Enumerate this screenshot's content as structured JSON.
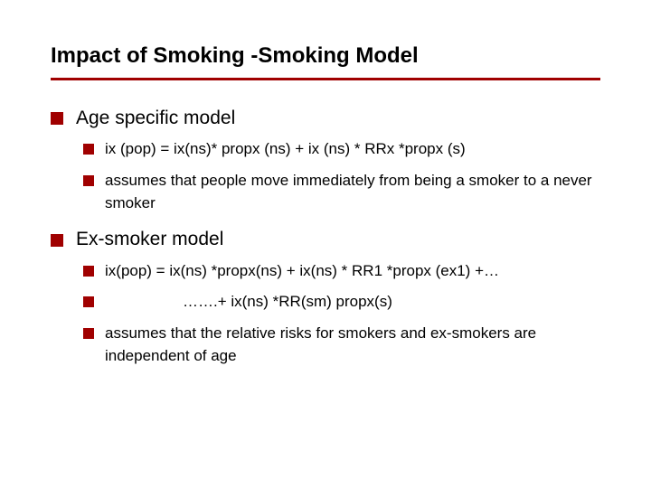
{
  "colors": {
    "bullet": "#a00000",
    "rule": "#a00000",
    "text": "#000000",
    "background": "#ffffff"
  },
  "typography": {
    "title_fontsize": 24,
    "level1_fontsize": 21,
    "level2_fontsize": 17,
    "font_family": "Arial"
  },
  "title": "Impact of Smoking -Smoking Model",
  "bullets": [
    {
      "label": "Age specific model",
      "items": [
        "ix (pop) = ix(ns)* propx (ns) +  ix (ns) * RRx *propx (s)",
        "assumes that people move immediately from being a smoker to a never smoker"
      ]
    },
    {
      "label": "Ex-smoker model",
      "items": [
        "ix(pop) = ix(ns) *propx(ns) + ix(ns) * RR1 *propx (ex1) +…",
        "              …….+ ix(ns) *RR(sm) propx(s)",
        "assumes that the relative risks for smokers and ex-smokers are independent of age"
      ]
    }
  ]
}
